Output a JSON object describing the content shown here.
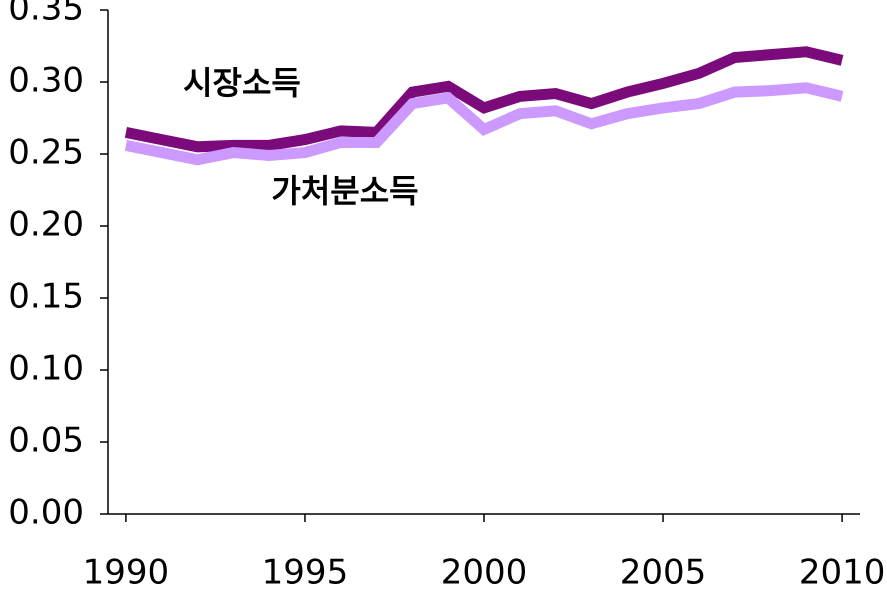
{
  "chart_data": {
    "type": "line",
    "x": [
      1990,
      1991,
      1992,
      1993,
      1994,
      1995,
      1996,
      1997,
      1998,
      1999,
      2000,
      2001,
      2002,
      2003,
      2004,
      2005,
      2006,
      2007,
      2008,
      2009,
      2010
    ],
    "series": [
      {
        "name": "시장소득",
        "color": "#7b0a7b",
        "values": [
          0.265,
          0.26,
          0.255,
          0.256,
          0.256,
          0.26,
          0.266,
          0.265,
          0.293,
          0.297,
          0.282,
          0.29,
          0.292,
          0.285,
          0.293,
          0.299,
          0.306,
          0.317,
          0.319,
          0.321,
          0.315
        ]
      },
      {
        "name": "가처분소득",
        "color": "#cc99ff",
        "values": [
          0.256,
          0.251,
          0.246,
          0.251,
          0.249,
          0.251,
          0.258,
          0.258,
          0.285,
          0.289,
          0.267,
          0.278,
          0.28,
          0.271,
          0.278,
          0.282,
          0.285,
          0.293,
          0.294,
          0.296,
          0.29
        ]
      }
    ],
    "xlim": [
      1989.5,
      2010.5
    ],
    "xticks": [
      1990,
      1995,
      2000,
      2005,
      2010
    ],
    "ylim": [
      0,
      0.35
    ],
    "yticks": [
      {
        "value": 0,
        "label": "0.00"
      },
      0.05,
      {
        "value": 0.1,
        "label": "0.10"
      },
      0.15,
      {
        "value": 0.2,
        "label": "0.20"
      },
      0.25,
      {
        "value": 0.3,
        "label": "0.30"
      },
      0.35
    ]
  }
}
